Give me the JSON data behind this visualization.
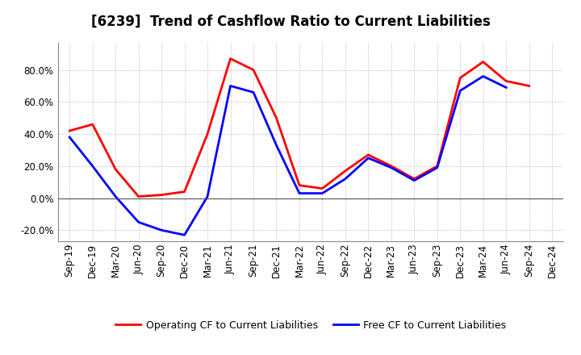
{
  "title": "[6239]  Trend of Cashflow Ratio to Current Liabilities",
  "x_labels": [
    "Sep-19",
    "Dec-19",
    "Mar-20",
    "Jun-20",
    "Sep-20",
    "Dec-20",
    "Mar-21",
    "Jun-21",
    "Sep-21",
    "Dec-21",
    "Mar-22",
    "Jun-22",
    "Sep-22",
    "Dec-22",
    "Mar-23",
    "Jun-23",
    "Sep-23",
    "Dec-23",
    "Mar-24",
    "Jun-24",
    "Sep-24",
    "Dec-24"
  ],
  "operating_cf": [
    0.42,
    0.46,
    0.18,
    0.01,
    0.02,
    0.04,
    0.4,
    0.87,
    0.8,
    0.5,
    0.08,
    0.06,
    0.17,
    0.27,
    0.2,
    0.12,
    0.2,
    0.75,
    0.85,
    0.73,
    0.7,
    null
  ],
  "free_cf": [
    0.38,
    0.2,
    0.01,
    -0.15,
    -0.2,
    -0.23,
    0.01,
    0.7,
    0.66,
    0.33,
    0.03,
    0.03,
    0.12,
    0.25,
    0.19,
    0.11,
    0.19,
    0.67,
    0.76,
    0.69,
    null,
    null
  ],
  "ylim": [
    -0.27,
    0.97
  ],
  "yticks": [
    -0.2,
    0.0,
    0.2,
    0.4,
    0.6,
    0.8
  ],
  "operating_color": "#ff0000",
  "free_color": "#0000ff",
  "legend_labels": [
    "Operating CF to Current Liabilities",
    "Free CF to Current Liabilities"
  ],
  "background_color": "#ffffff",
  "plot_bg_color": "#ffffff",
  "grid_color": "#aaaaaa",
  "title_fontsize": 12,
  "tick_fontsize": 8.5,
  "legend_fontsize": 9,
  "linewidth": 2.0
}
